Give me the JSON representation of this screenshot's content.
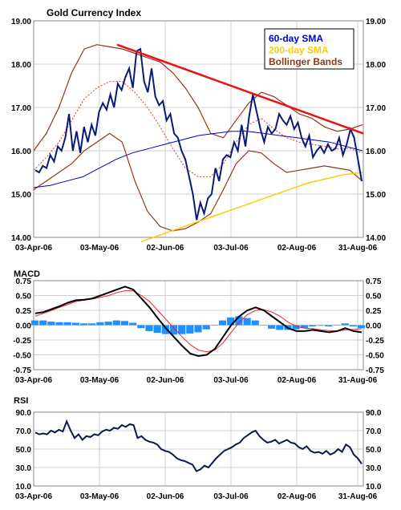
{
  "chart_data": [
    {
      "type": "line",
      "title": "Gold Currency Index",
      "x_dates": [
        "03-Apr-06",
        "03-May-06",
        "02-Jun-06",
        "03-Jul-06",
        "02-Aug-06",
        "31-Aug-06"
      ],
      "ylim": [
        14.0,
        19.0
      ],
      "y_ticks": [
        "14.00",
        "15.00",
        "16.00",
        "17.00",
        "18.00",
        "19.00"
      ],
      "legend": {
        "placement": "top-right",
        "entries": [
          {
            "label": "60-day SMA",
            "color": "#0000cc"
          },
          {
            "label": "200-day SMA",
            "color": "#ffcc00"
          },
          {
            "label": "Bollinger Bands",
            "color": "#8b3a1a"
          }
        ]
      },
      "series": {
        "price": [
          15.55,
          15.5,
          15.65,
          15.6,
          15.9,
          15.75,
          16.1,
          16.0,
          16.3,
          16.85,
          16.0,
          16.45,
          15.95,
          16.55,
          16.2,
          16.6,
          16.35,
          16.9,
          17.1,
          16.95,
          17.3,
          17.0,
          17.55,
          17.4,
          17.7,
          17.9,
          17.45,
          18.3,
          18.35,
          17.6,
          17.35,
          17.9,
          17.25,
          17.05,
          17.15,
          16.7,
          16.85,
          16.4,
          16.3,
          16.0,
          15.8,
          15.4,
          15.0,
          14.4,
          14.8,
          14.55,
          14.9,
          15.0,
          15.6,
          15.3,
          15.8,
          15.9,
          15.85,
          16.2,
          16.0,
          16.6,
          16.1,
          16.8,
          17.3,
          16.9,
          16.5,
          16.2,
          16.55,
          16.4,
          16.5,
          16.85,
          16.7,
          16.6,
          16.8,
          16.5,
          16.65,
          16.3,
          16.1,
          16.35,
          15.85,
          16.0,
          16.1,
          15.95,
          16.15,
          16.0,
          16.05,
          16.3,
          15.9,
          16.15,
          16.5,
          16.3,
          15.8,
          15.3
        ],
        "sma60": [
          15.15,
          15.2,
          15.3,
          15.4,
          15.6,
          15.8,
          15.95,
          16.05,
          16.15,
          16.25,
          16.35,
          16.4,
          16.45,
          16.45,
          16.4,
          16.35,
          16.3,
          16.25,
          16.2,
          16.1,
          16.0
        ],
        "sma200": [
          13.9,
          14.05,
          14.2,
          14.35,
          14.5,
          14.65,
          14.8,
          14.95,
          15.1,
          15.25,
          15.35,
          15.45,
          15.5
        ],
        "bb_upper": [
          16.0,
          16.4,
          17.0,
          17.8,
          18.35,
          18.45,
          18.4,
          18.35,
          18.25,
          18.15,
          18.05,
          17.8,
          17.45,
          17.0,
          16.4,
          16.3,
          16.7,
          17.1,
          17.35,
          17.25,
          17.05,
          16.85,
          16.75,
          16.55,
          16.45,
          16.5,
          16.6
        ],
        "bb_mid": [
          15.55,
          15.85,
          16.2,
          16.7,
          17.2,
          17.45,
          17.6,
          17.6,
          17.35,
          17.0,
          16.55,
          16.05,
          15.6,
          15.4,
          15.4,
          15.7,
          16.2,
          16.6,
          16.75,
          16.5,
          16.3,
          16.2,
          16.15,
          16.1,
          16.05,
          16.05,
          15.95
        ],
        "bb_lower": [
          15.1,
          15.3,
          15.5,
          15.7,
          16.0,
          16.2,
          16.4,
          16.2,
          15.3,
          14.6,
          14.25,
          14.15,
          14.2,
          14.35,
          14.55,
          15.1,
          15.7,
          16.0,
          15.95,
          15.7,
          15.5,
          15.55,
          15.6,
          15.65,
          15.6,
          15.55,
          15.3
        ],
        "trendline": [
          [
            18.45
          ],
          [
            16.4
          ]
        ]
      }
    },
    {
      "type": "line",
      "title": "MACD",
      "ylim": [
        -0.75,
        0.75
      ],
      "y_ticks": [
        "-0.75",
        "-0.50",
        "-0.25",
        "0.00",
        "0.25",
        "0.50",
        "0.75"
      ],
      "series": {
        "macd": [
          0.2,
          0.22,
          0.27,
          0.32,
          0.38,
          0.42,
          0.43,
          0.45,
          0.5,
          0.55,
          0.6,
          0.65,
          0.6,
          0.45,
          0.3,
          0.12,
          -0.05,
          -0.2,
          -0.35,
          -0.48,
          -0.52,
          -0.5,
          -0.4,
          -0.2,
          0.0,
          0.15,
          0.25,
          0.3,
          0.25,
          0.15,
          0.05,
          -0.05,
          -0.1,
          -0.1,
          -0.08,
          -0.1,
          -0.12,
          -0.1,
          -0.05,
          -0.1,
          -0.12
        ],
        "signal": [
          0.15,
          0.2,
          0.25,
          0.3,
          0.35,
          0.4,
          0.42,
          0.44,
          0.47,
          0.5,
          0.55,
          0.58,
          0.58,
          0.5,
          0.4,
          0.25,
          0.1,
          -0.05,
          -0.2,
          -0.33,
          -0.42,
          -0.45,
          -0.42,
          -0.3,
          -0.12,
          0.05,
          0.18,
          0.25,
          0.26,
          0.22,
          0.15,
          0.05,
          -0.02,
          -0.05,
          -0.06,
          -0.08,
          -0.09,
          -0.1,
          -0.08,
          -0.07,
          -0.06
        ],
        "histogram": [
          0.08,
          0.08,
          0.06,
          0.05,
          0.05,
          0.04,
          0.03,
          0.03,
          0.05,
          0.06,
          0.08,
          0.07,
          0.04,
          -0.05,
          -0.1,
          -0.13,
          -0.15,
          -0.16,
          -0.15,
          -0.14,
          -0.12,
          -0.07,
          0.0,
          0.08,
          0.13,
          0.15,
          0.12,
          0.08,
          0.0,
          -0.06,
          -0.08,
          -0.08,
          -0.07,
          -0.05,
          -0.02,
          -0.01,
          -0.02,
          0.0,
          0.03,
          -0.02,
          -0.05
        ]
      }
    },
    {
      "type": "line",
      "title": "RSI",
      "ylim": [
        10.0,
        90.0
      ],
      "y_ticks": [
        "10.0",
        "30.0",
        "50.0",
        "70.0",
        "90.0"
      ],
      "series": {
        "rsi": [
          68,
          66,
          67,
          66,
          70,
          68,
          71,
          69,
          80,
          70,
          62,
          66,
          60,
          64,
          63,
          66,
          65,
          69,
          71,
          70,
          73,
          72,
          76,
          74,
          77,
          76,
          62,
          64,
          60,
          58,
          57,
          55,
          50,
          48,
          47,
          44,
          40,
          38,
          37,
          35,
          33,
          26,
          28,
          32,
          30,
          35,
          40,
          44,
          48,
          50,
          52,
          55,
          57,
          62,
          65,
          68,
          70,
          64,
          60,
          57,
          58,
          60,
          56,
          58,
          60,
          57,
          56,
          52,
          50,
          53,
          48,
          46,
          47,
          45,
          48,
          44,
          46,
          50,
          47,
          55,
          52,
          44,
          40,
          34
        ]
      }
    }
  ]
}
